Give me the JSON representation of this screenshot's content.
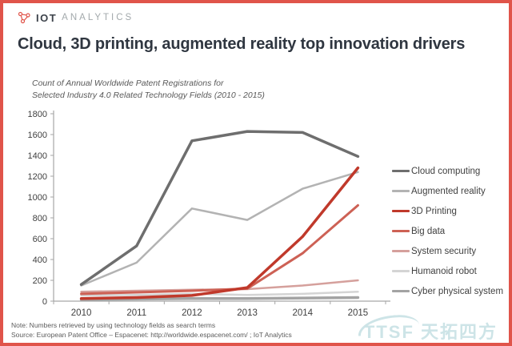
{
  "header": {
    "logo_primary": "IOT",
    "logo_secondary": "ANALYTICS",
    "title": "Cloud, 3D printing, augmented reality top innovation drivers"
  },
  "subtitle": {
    "line1": "Count of Annual Worldwide Patent Registrations for",
    "line2": "Selected Industry 4.0 Related Technology Fields (2010 - 2015)"
  },
  "footer": {
    "note": "Note: Numbers retrieved by using technology fields as search terms",
    "source": "Source: European Patent Office – Espacenet: http://worldwide.espacenet.com/ ; IoT Analytics"
  },
  "watermark": {
    "text": "TTSF 天拓四方"
  },
  "colors": {
    "border": "#e0544a",
    "accent_red": "#e0544a",
    "title_text": "#2f3640",
    "axis": "#a6a6a6",
    "tick_label": "#404040",
    "watermark": "#cde4e7"
  },
  "chart_data": {
    "type": "line",
    "title": "Count of Annual Worldwide Patent Registrations for Selected Industry 4.0 Related Technology Fields (2010 - 2015)",
    "xlabel": "",
    "ylabel": "",
    "x": [
      "2010",
      "2011",
      "2012",
      "2013",
      "2014",
      "2015"
    ],
    "ylim": [
      0,
      1800
    ],
    "ytick_step": 200,
    "grid": false,
    "legend_position": "right",
    "series": [
      {
        "name": "Cloud computing",
        "color": "#6e6e6e",
        "width": 3.5,
        "values": [
          160,
          530,
          1540,
          1630,
          1620,
          1390
        ]
      },
      {
        "name": "Augmented reality",
        "color": "#b3b3b3",
        "width": 2.5,
        "values": [
          150,
          370,
          890,
          780,
          1080,
          1240
        ]
      },
      {
        "name": "3D Printing",
        "color": "#c0392b",
        "width": 3.5,
        "values": [
          25,
          35,
          55,
          130,
          620,
          1280
        ]
      },
      {
        "name": "Big data",
        "color": "#cd6155",
        "width": 3,
        "values": [
          70,
          85,
          100,
          120,
          460,
          920
        ]
      },
      {
        "name": "System security",
        "color": "#d5a09c",
        "width": 2.5,
        "values": [
          90,
          100,
          110,
          115,
          150,
          200
        ]
      },
      {
        "name": "Humanoid robot",
        "color": "#d4d4d4",
        "width": 2.5,
        "values": [
          55,
          60,
          70,
          60,
          70,
          90
        ]
      },
      {
        "name": "Cyber physical system",
        "color": "#a3a3a3",
        "width": 3.5,
        "values": [
          15,
          20,
          25,
          25,
          30,
          35
        ]
      }
    ],
    "draw_order": [
      5,
      6,
      4,
      3,
      1,
      0,
      2
    ]
  }
}
